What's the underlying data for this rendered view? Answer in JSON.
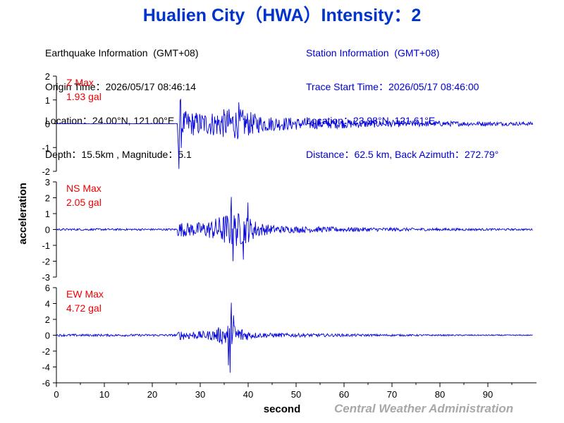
{
  "title": "Hualien City（HWA）Intensity：2",
  "earthquake_info": {
    "header": "Earthquake Information  (GMT+08)",
    "origin_time": "Origin Time：2026/05/17 08:46:14",
    "location": "Location：24.00°N, 121.00°E",
    "depth_magnitude": "Depth：15.5km , Magnitude：5.1"
  },
  "station_info": {
    "header": "Station Information  (GMT+08)",
    "trace_start": "Trace Start Time：2026/05/17 08:46:00",
    "location": "Location：23.98°N, 121.61°E",
    "distance": "Distance：62.5 km, Back Azimuth：272.79°"
  },
  "credit": "Central Weather Administration",
  "colors": {
    "trace": "#0000dd",
    "label": "#ee0000",
    "title": "#0033cc"
  },
  "chart_data": [
    {
      "type": "line",
      "component": "Z",
      "label": "Z Max",
      "max_value": "1.93 gal",
      "ylim": [
        -2,
        2
      ],
      "yticks": [
        -2,
        -1,
        0,
        1,
        2
      ],
      "xlim": [
        0,
        100
      ],
      "onset_s": 25.3,
      "peak_time_s": 25.5,
      "peaks": [
        [
          25.5,
          1.93
        ],
        [
          25.6,
          -1.9
        ],
        [
          38.0,
          0.9
        ]
      ]
    },
    {
      "type": "line",
      "component": "NS",
      "label": "NS Max",
      "max_value": "2.05 gal",
      "ylim": [
        -3,
        3
      ],
      "yticks": [
        -3,
        -2,
        -1,
        0,
        1,
        2,
        3
      ],
      "xlim": [
        0,
        100
      ],
      "onset_s": 25.3,
      "peak_time_s": 36.5,
      "peaks": [
        [
          36.5,
          2.05
        ],
        [
          36.8,
          -2.0
        ],
        [
          39.0,
          -1.9
        ],
        [
          40.0,
          1.7
        ]
      ]
    },
    {
      "type": "line",
      "component": "EW",
      "label": "EW Max",
      "max_value": "4.72 gal",
      "ylim": [
        -6,
        6
      ],
      "yticks": [
        -6,
        -4,
        -2,
        0,
        2,
        4,
        6
      ],
      "xlim": [
        0,
        100
      ],
      "onset_s": 25.3,
      "peak_time_s": 36.2,
      "peaks": [
        [
          36.2,
          -4.72
        ],
        [
          36.5,
          4.1
        ],
        [
          35.9,
          -3.8
        ],
        [
          37.0,
          2.5
        ]
      ]
    }
  ],
  "axes": {
    "xlabel": "second",
    "ylabel": "acceleration",
    "xticks": [
      0,
      10,
      20,
      30,
      40,
      50,
      60,
      70,
      80,
      90
    ]
  }
}
